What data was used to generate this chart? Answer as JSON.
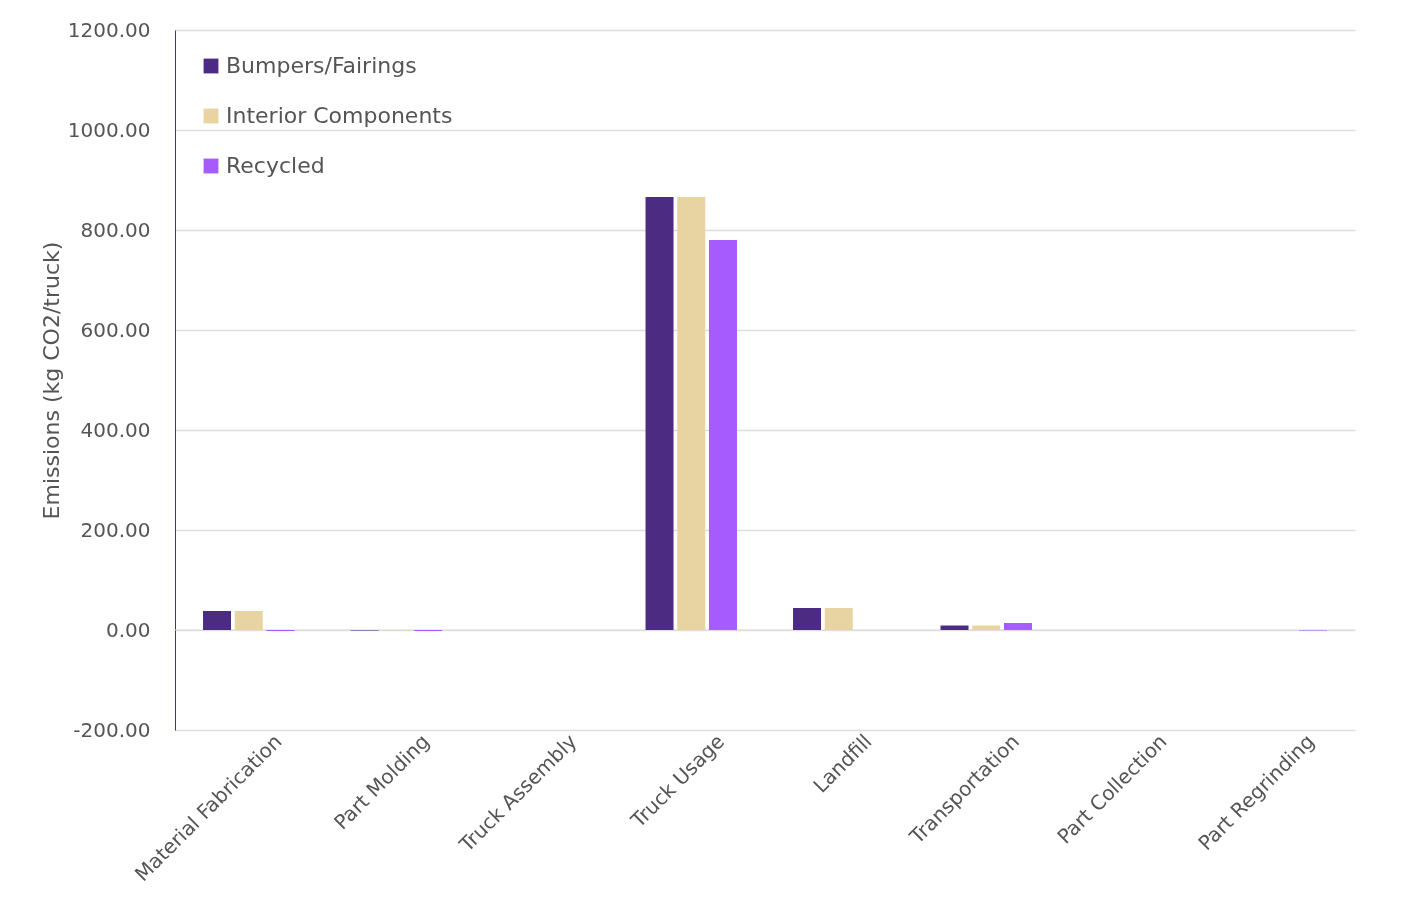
{
  "chart_data": {
    "type": "bar",
    "ylabel": "Emissions (kg CO2/truck)",
    "categories": [
      "Material Fabrication",
      "Part Molding",
      "Truck Assembly",
      "Truck Usage",
      "Landfill",
      "Transportation",
      "Part Collection",
      "Part Regrinding"
    ],
    "series": [
      {
        "name": "Bumpers/Fairings",
        "color": "#4b2c82",
        "values": [
          38,
          -1,
          0,
          866,
          44,
          9,
          0,
          0
        ]
      },
      {
        "name": "Interior Components",
        "color": "#e8d4a2",
        "values": [
          38,
          -1,
          0,
          866,
          44,
          9,
          0,
          0
        ]
      },
      {
        "name": "Recycled",
        "color": "#a55bff",
        "values": [
          -2,
          -2,
          0,
          780,
          0,
          14,
          0,
          -1
        ]
      }
    ],
    "ylim": [
      -200,
      1200
    ],
    "yticks": [
      {
        "value": -200,
        "label": "-200.00"
      },
      {
        "value": 0,
        "label": "0.00"
      },
      {
        "value": 200,
        "label": "200.00"
      },
      {
        "value": 400,
        "label": "400.00"
      },
      {
        "value": 600,
        "label": "600.00"
      },
      {
        "value": 800,
        "label": "800.00"
      },
      {
        "value": 1000,
        "label": "1000.00"
      },
      {
        "value": 1200,
        "label": "1200.00"
      }
    ],
    "grid": "y",
    "legend": "top left"
  }
}
